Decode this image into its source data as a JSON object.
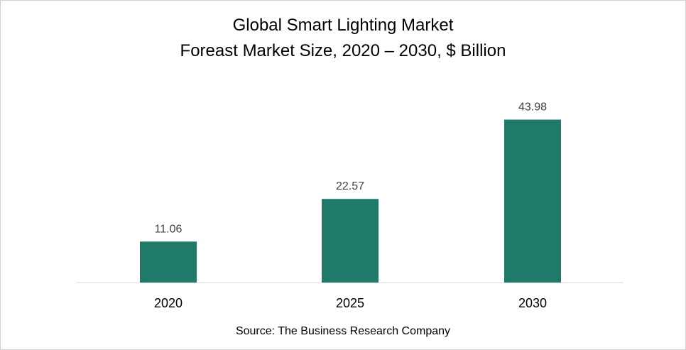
{
  "chart_data": {
    "type": "bar",
    "title": "Global Smart Lighting Market",
    "subtitle": "Foreast Market Size, 2020 – 2030, $ Billion",
    "categories": [
      "2020",
      "2025",
      "2030"
    ],
    "values": [
      11.06,
      22.57,
      43.98
    ],
    "data_labels": [
      "11.06",
      "22.57",
      "43.98"
    ],
    "xlabel": "",
    "ylabel": "",
    "ylim": [
      0,
      55
    ],
    "grid": false,
    "bar_color": "#1f7a6a",
    "source": "Source: The Business Research Company"
  }
}
